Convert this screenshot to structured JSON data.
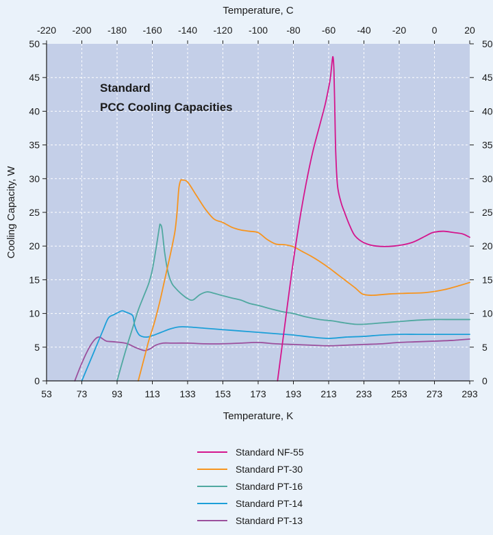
{
  "chart_data": {
    "type": "line",
    "title": "",
    "annotation": [
      "Standard",
      "PCC Cooling Capacities"
    ],
    "xlabel": "Temperature, K",
    "ylabel": "Cooling Capacity, W",
    "x2label": "Temperature, C",
    "xlim": [
      53,
      293
    ],
    "ylim": [
      0,
      50
    ],
    "x2lim": [
      -220,
      20
    ],
    "x_ticks": [
      53,
      73,
      93,
      113,
      133,
      153,
      173,
      193,
      213,
      233,
      253,
      273,
      293
    ],
    "x2_ticks": [
      -220,
      -200,
      -180,
      -160,
      -140,
      -120,
      -100,
      -80,
      -60,
      -40,
      -20,
      0,
      20
    ],
    "y_ticks": [
      0,
      5,
      10,
      15,
      20,
      25,
      30,
      35,
      40,
      45,
      50
    ],
    "grid": true,
    "legend_position": "bottom-center",
    "series": [
      {
        "name": "Standard NF-55",
        "color": "#d4148c",
        "points": [
          [
            184,
            0
          ],
          [
            188,
            8
          ],
          [
            192,
            16
          ],
          [
            196,
            23
          ],
          [
            200,
            29
          ],
          [
            204,
            34
          ],
          [
            208,
            38
          ],
          [
            211,
            41
          ],
          [
            213,
            43.5
          ],
          [
            214,
            45
          ],
          [
            215,
            47.5
          ],
          [
            215.5,
            48
          ],
          [
            216,
            46
          ],
          [
            216.5,
            40
          ],
          [
            217,
            34
          ],
          [
            218,
            29
          ],
          [
            220,
            26.5
          ],
          [
            222,
            25
          ],
          [
            225,
            23
          ],
          [
            228,
            21.5
          ],
          [
            233,
            20.5
          ],
          [
            240,
            20
          ],
          [
            250,
            20
          ],
          [
            260,
            20.5
          ],
          [
            268,
            21.5
          ],
          [
            272,
            22
          ],
          [
            278,
            22.2
          ],
          [
            284,
            22
          ],
          [
            289,
            21.8
          ],
          [
            293,
            21.3
          ]
        ]
      },
      {
        "name": "Standard PT-30",
        "color": "#f7941d",
        "points": [
          [
            105,
            0
          ],
          [
            107,
            2
          ],
          [
            109,
            4
          ],
          [
            111,
            6
          ],
          [
            114,
            8.5
          ],
          [
            117,
            11.5
          ],
          [
            120,
            15
          ],
          [
            123,
            18.5
          ],
          [
            125,
            21
          ],
          [
            126,
            22.5
          ],
          [
            127,
            25
          ],
          [
            128,
            28.5
          ],
          [
            129,
            29.7
          ],
          [
            130,
            29.8
          ],
          [
            133,
            29.5
          ],
          [
            138,
            27.5
          ],
          [
            143,
            25.5
          ],
          [
            148,
            24
          ],
          [
            153,
            23.5
          ],
          [
            158,
            22.8
          ],
          [
            163,
            22.4
          ],
          [
            168,
            22.2
          ],
          [
            173,
            22
          ],
          [
            178,
            21
          ],
          [
            183,
            20.3
          ],
          [
            188,
            20.2
          ],
          [
            193,
            19.9
          ],
          [
            198,
            19.2
          ],
          [
            203,
            18.5
          ],
          [
            208,
            17.7
          ],
          [
            213,
            16.8
          ],
          [
            218,
            15.8
          ],
          [
            223,
            14.8
          ],
          [
            228,
            13.8
          ],
          [
            231,
            13.1
          ],
          [
            233,
            12.8
          ],
          [
            238,
            12.7
          ],
          [
            248,
            12.9
          ],
          [
            258,
            13
          ],
          [
            268,
            13.1
          ],
          [
            278,
            13.5
          ],
          [
            288,
            14.2
          ],
          [
            293,
            14.6
          ]
        ]
      },
      {
        "name": "Standard PT-16",
        "color": "#4fa8a0",
        "points": [
          [
            93,
            0
          ],
          [
            96,
            2.8
          ],
          [
            99,
            5.5
          ],
          [
            102,
            8
          ],
          [
            105,
            10.5
          ],
          [
            108,
            12.5
          ],
          [
            111,
            14.5
          ],
          [
            113,
            16.5
          ],
          [
            115,
            19.5
          ],
          [
            117,
            22.8
          ],
          [
            117.5,
            23.2
          ],
          [
            118.5,
            22.5
          ],
          [
            120,
            19
          ],
          [
            122,
            16
          ],
          [
            124,
            14.5
          ],
          [
            126,
            13.8
          ],
          [
            129,
            13
          ],
          [
            133,
            12.2
          ],
          [
            136,
            12
          ],
          [
            140,
            12.8
          ],
          [
            144,
            13.2
          ],
          [
            148,
            13
          ],
          [
            152,
            12.7
          ],
          [
            158,
            12.3
          ],
          [
            163,
            12
          ],
          [
            168,
            11.5
          ],
          [
            173,
            11.2
          ],
          [
            180,
            10.7
          ],
          [
            188,
            10.2
          ],
          [
            193,
            10
          ],
          [
            200,
            9.5
          ],
          [
            208,
            9.1
          ],
          [
            215,
            8.9
          ],
          [
            222,
            8.6
          ],
          [
            228,
            8.4
          ],
          [
            233,
            8.4
          ],
          [
            243,
            8.6
          ],
          [
            253,
            8.8
          ],
          [
            263,
            9
          ],
          [
            273,
            9.1
          ],
          [
            283,
            9.1
          ],
          [
            293,
            9.1
          ]
        ]
      },
      {
        "name": "Standard PT-14",
        "color": "#1c9fd8",
        "points": [
          [
            73,
            0
          ],
          [
            77,
            2.5
          ],
          [
            81,
            5
          ],
          [
            85,
            7.5
          ],
          [
            88,
            9.3
          ],
          [
            91,
            9.8
          ],
          [
            94,
            10.2
          ],
          [
            96,
            10.4
          ],
          [
            98,
            10.2
          ],
          [
            100,
            10
          ],
          [
            102,
            9.6
          ],
          [
            103,
            8.2
          ],
          [
            105,
            7
          ],
          [
            107,
            6.6
          ],
          [
            110,
            6.5
          ],
          [
            113,
            6.7
          ],
          [
            118,
            7.2
          ],
          [
            123,
            7.7
          ],
          [
            128,
            8
          ],
          [
            133,
            8
          ],
          [
            143,
            7.8
          ],
          [
            153,
            7.6
          ],
          [
            163,
            7.4
          ],
          [
            173,
            7.2
          ],
          [
            183,
            7
          ],
          [
            193,
            6.8
          ],
          [
            203,
            6.5
          ],
          [
            213,
            6.3
          ],
          [
            223,
            6.5
          ],
          [
            233,
            6.6
          ],
          [
            243,
            6.8
          ],
          [
            253,
            6.9
          ],
          [
            263,
            6.9
          ],
          [
            273,
            6.9
          ],
          [
            283,
            6.9
          ],
          [
            293,
            6.9
          ]
        ]
      },
      {
        "name": "Standard PT-13",
        "color": "#9b4f9c",
        "points": [
          [
            69,
            0
          ],
          [
            72,
            2
          ],
          [
            75,
            3.8
          ],
          [
            78,
            5.3
          ],
          [
            81,
            6.3
          ],
          [
            83,
            6.5
          ],
          [
            85,
            6.2
          ],
          [
            87,
            5.9
          ],
          [
            91,
            5.8
          ],
          [
            95,
            5.7
          ],
          [
            99,
            5.5
          ],
          [
            103,
            5
          ],
          [
            107,
            4.6
          ],
          [
            109,
            4.5
          ],
          [
            112,
            4.8
          ],
          [
            115,
            5.3
          ],
          [
            119,
            5.6
          ],
          [
            124,
            5.6
          ],
          [
            133,
            5.6
          ],
          [
            143,
            5.5
          ],
          [
            153,
            5.5
          ],
          [
            163,
            5.6
          ],
          [
            173,
            5.7
          ],
          [
            183,
            5.5
          ],
          [
            193,
            5.4
          ],
          [
            203,
            5.3
          ],
          [
            213,
            5.2
          ],
          [
            223,
            5.3
          ],
          [
            233,
            5.4
          ],
          [
            243,
            5.5
          ],
          [
            253,
            5.7
          ],
          [
            263,
            5.8
          ],
          [
            273,
            5.9
          ],
          [
            283,
            6
          ],
          [
            293,
            6.2
          ]
        ]
      }
    ]
  },
  "style": {
    "page_bg": "#eaf2fa",
    "plot_bg": "#c4cfe8",
    "grid_color": "#ffffff",
    "axis_color": "#1a1a1a"
  }
}
